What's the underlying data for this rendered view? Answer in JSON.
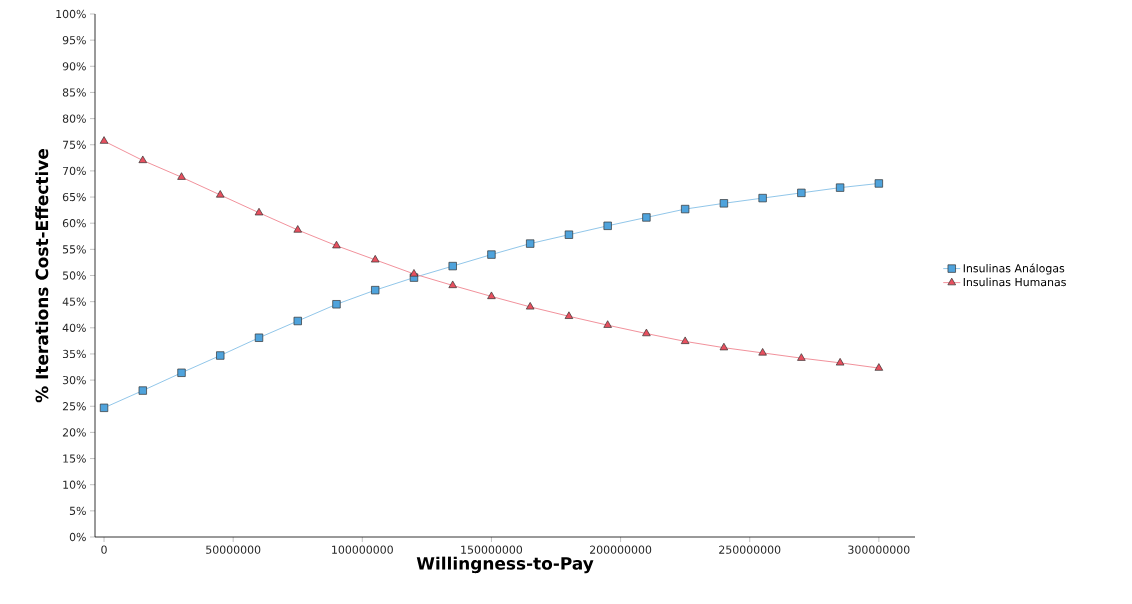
{
  "chart_data": {
    "type": "line",
    "xlabel": "Willingness-to-Pay",
    "ylabel": "% Iterations Cost-Effective",
    "x": [
      0,
      15000000,
      30000000,
      45000000,
      60000000,
      75000000,
      90000000,
      105000000,
      120000000,
      135000000,
      150000000,
      165000000,
      180000000,
      195000000,
      210000000,
      225000000,
      240000000,
      255000000,
      270000000,
      285000000,
      300000000
    ],
    "series": [
      {
        "name": "Insulinas Análogas",
        "color": "#4fa3dc",
        "marker": "square",
        "values": [
          24.7,
          28,
          31.4,
          34.7,
          38.1,
          41.3,
          44.5,
          47.2,
          49.6,
          51.8,
          54,
          56.1,
          57.8,
          59.5,
          61.1,
          62.7,
          63.8,
          64.8,
          65.8,
          66.8,
          67.6
        ]
      },
      {
        "name": "Insulinas Humanas",
        "color": "#e8505f",
        "marker": "triangle",
        "values": [
          75.7,
          72,
          68.8,
          65.4,
          62,
          58.7,
          55.7,
          53,
          50.3,
          48.1,
          46,
          44,
          42.2,
          40.5,
          38.9,
          37.4,
          36.2,
          35.2,
          34.2,
          33.3,
          32.3
        ]
      }
    ],
    "xlim": [
      -3500000,
      314000000
    ],
    "xticks": [
      0,
      50000000,
      100000000,
      150000000,
      200000000,
      250000000,
      300000000
    ],
    "ylim": [
      0,
      100
    ],
    "yticks": [
      {
        "value": 0,
        "label": "0%"
      },
      {
        "value": 5,
        "label": "5%"
      },
      {
        "value": 10,
        "label": "10%"
      },
      {
        "value": 15,
        "label": "15%"
      },
      {
        "value": 20,
        "label": "20%"
      },
      {
        "value": 25,
        "label": "25%"
      },
      {
        "value": 30,
        "label": "30%"
      },
      {
        "value": 35,
        "label": "35%"
      },
      {
        "value": 40,
        "label": "40%"
      },
      {
        "value": 45,
        "label": "45%"
      },
      {
        "value": 50,
        "label": "50%"
      },
      {
        "value": 55,
        "label": "55%"
      },
      {
        "value": 60,
        "label": "60%"
      },
      {
        "value": 65,
        "label": "65%"
      },
      {
        "value": 70,
        "label": "70%"
      },
      {
        "value": 75,
        "label": "75%"
      },
      {
        "value": 80,
        "label": "80%"
      },
      {
        "value": 85,
        "label": "85%"
      },
      {
        "value": 90,
        "label": "90%"
      },
      {
        "value": 95,
        "label": "95%"
      },
      {
        "value": 100,
        "label": "100%"
      }
    ],
    "grid": false,
    "legend": "right",
    "line_style": "solid"
  }
}
